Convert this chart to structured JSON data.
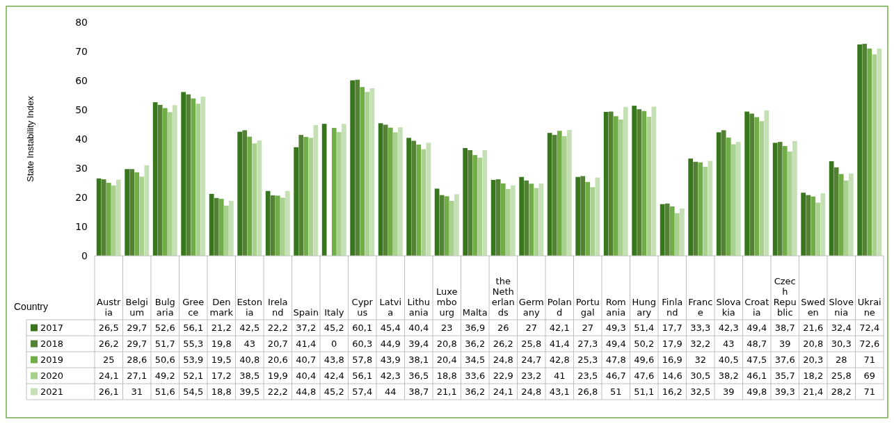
{
  "chart_data": {
    "type": "bar",
    "ylabel": "State Instability Index",
    "xlabel": "Country",
    "categories": [
      "Austria",
      "Belgium",
      "Bulgaria",
      "Greece",
      "Denmark",
      "Estonia",
      "Ireland",
      "Spain",
      "Italy",
      "Cyprus",
      "Latvia",
      "Lithuania",
      "Luxembourg",
      "Malta",
      "the Netherlands",
      "Germany",
      "Poland",
      "Portugal",
      "Romania",
      "Hungary",
      "Finland",
      "France",
      "Slovakia",
      "Croatia",
      "Czech Republic",
      "Sweden",
      "Slovenia",
      "Ukraine"
    ],
    "ylim": [
      0,
      80
    ],
    "yticks": [
      0,
      10,
      20,
      30,
      40,
      50,
      60,
      70,
      80
    ],
    "grid": false,
    "legend": "bottom",
    "series": [
      {
        "name": "2017",
        "color": "#38761d",
        "values": [
          26.5,
          29.7,
          52.6,
          56.1,
          21.2,
          42.5,
          22.2,
          37.2,
          45.2,
          60.1,
          45.4,
          40.4,
          23,
          36.9,
          26,
          27,
          42.1,
          27,
          49.3,
          51.4,
          17.7,
          33.3,
          42.3,
          49.4,
          38.7,
          21.6,
          32.4,
          72.4
        ],
        "value_labels": [
          "26,5",
          "29,7",
          "52,6",
          "56,1",
          "21,2",
          "42,5",
          "22,2",
          "37,2",
          "45,2",
          "60,1",
          "45,4",
          "40,4",
          "23",
          "36,9",
          "26",
          "27",
          "42,1",
          "27",
          "49,3",
          "51,4",
          "17,7",
          "33,3",
          "42,3",
          "49,4",
          "38,7",
          "21,6",
          "32,4",
          "72,4"
        ]
      },
      {
        "name": "2018",
        "color": "#548235",
        "values": [
          26.2,
          29.7,
          51.7,
          55.3,
          19.8,
          43,
          20.7,
          41.4,
          0,
          60.3,
          44.9,
          39.4,
          20.8,
          36.2,
          26.2,
          25.8,
          41.4,
          27.3,
          49.4,
          50.2,
          17.9,
          32.2,
          43,
          48.7,
          39,
          20.8,
          30.3,
          72.6
        ],
        "value_labels": [
          "26,2",
          "29,7",
          "51,7",
          "55,3",
          "19,8",
          "43",
          "20,7",
          "41,4",
          "0",
          "60,3",
          "44,9",
          "39,4",
          "20,8",
          "36,2",
          "26,2",
          "25,8",
          "41,4",
          "27,3",
          "49,4",
          "50,2",
          "17,9",
          "32,2",
          "43",
          "48,7",
          "39",
          "20,8",
          "30,3",
          "72,6"
        ]
      },
      {
        "name": "2019",
        "color": "#70ad47",
        "values": [
          25,
          28.6,
          50.6,
          53.9,
          19.5,
          40.8,
          20.6,
          40.7,
          43.8,
          57.8,
          43.9,
          38.1,
          20.4,
          34.5,
          24.8,
          24.7,
          42.8,
          25.3,
          47.8,
          49.6,
          16.9,
          32,
          40.5,
          47.5,
          37.6,
          20.3,
          28,
          71
        ],
        "value_labels": [
          "25",
          "28,6",
          "50,6",
          "53,9",
          "19,5",
          "40,8",
          "20,6",
          "40,7",
          "43,8",
          "57,8",
          "43,9",
          "38,1",
          "20,4",
          "34,5",
          "24,8",
          "24,7",
          "42,8",
          "25,3",
          "47,8",
          "49,6",
          "16,9",
          "32",
          "40,5",
          "47,5",
          "37,6",
          "20,3",
          "28",
          "71"
        ]
      },
      {
        "name": "2020",
        "color": "#a9d18e",
        "values": [
          24.1,
          27.1,
          49.2,
          52.1,
          17.2,
          38.5,
          19.9,
          40.4,
          42.4,
          56.1,
          42.3,
          36.5,
          18.8,
          33.6,
          22.9,
          23.2,
          41,
          23.5,
          46.7,
          47.6,
          14.6,
          30.5,
          38.2,
          46.1,
          35.7,
          18.2,
          25.8,
          69
        ],
        "value_labels": [
          "24,1",
          "27,1",
          "49,2",
          "52,1",
          "17,2",
          "38,5",
          "19,9",
          "40,4",
          "42,4",
          "56,1",
          "42,3",
          "36,5",
          "18,8",
          "33,6",
          "22,9",
          "23,2",
          "41",
          "23,5",
          "46,7",
          "47,6",
          "14,6",
          "30,5",
          "38,2",
          "46,1",
          "35,7",
          "18,2",
          "25,8",
          "69"
        ]
      },
      {
        "name": "2021",
        "color": "#c5e0b4",
        "values": [
          26.1,
          31,
          51.6,
          54.5,
          18.8,
          39.5,
          22.2,
          44.8,
          45.2,
          57.4,
          44,
          38.7,
          21.1,
          36.2,
          24.1,
          24.8,
          43.1,
          26.8,
          51,
          51.1,
          16.2,
          32.5,
          39,
          49.8,
          39.3,
          21.4,
          28.2,
          71
        ],
        "value_labels": [
          "26,1",
          "31",
          "51,6",
          "54,5",
          "18,8",
          "39,5",
          "22,2",
          "44,8",
          "45,2",
          "57,4",
          "44",
          "38,7",
          "21,1",
          "36,2",
          "24,1",
          "24,8",
          "43,1",
          "26,8",
          "51",
          "51,1",
          "16,2",
          "32,5",
          "39",
          "49,8",
          "39,3",
          "21,4",
          "28,2",
          "71"
        ]
      }
    ]
  }
}
